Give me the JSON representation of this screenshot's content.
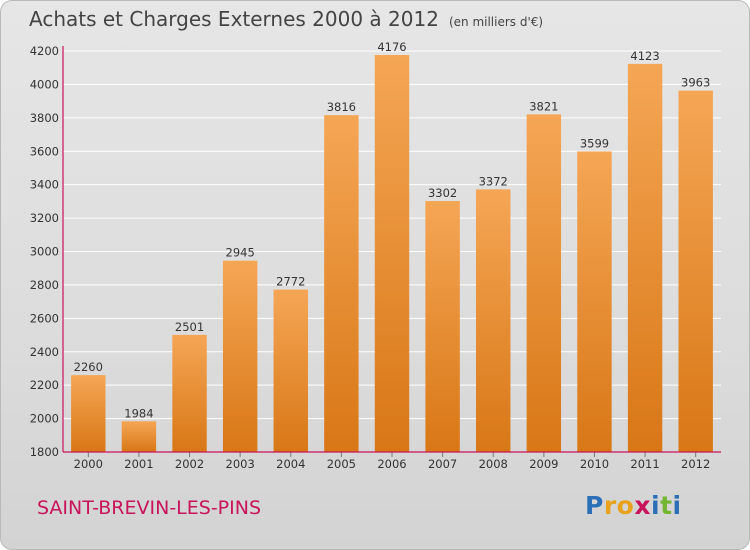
{
  "title": "Achats et Charges Externes 2000 à 2012",
  "unit": "(en milliers d'€)",
  "city": "SAINT-BREVIN-LES-PINS",
  "brand": {
    "letters": [
      "P",
      "r",
      "o",
      "x",
      "i",
      "t",
      "i"
    ],
    "colors": [
      "#2c6fb7",
      "#e8a21d",
      "#e8a21d",
      "#c8145a",
      "#2c6fb7",
      "#74b531",
      "#2c6fb7"
    ]
  },
  "colors": {
    "bar_light": "#f5a655",
    "bar_dark": "#d87716",
    "axis": "#c8145a",
    "grid": "#ffffff"
  },
  "chart_data": {
    "type": "bar",
    "title": "Achats et Charges Externes 2000 à 2012",
    "categories": [
      "2000",
      "2001",
      "2002",
      "2003",
      "2004",
      "2005",
      "2006",
      "2007",
      "2008",
      "2009",
      "2010",
      "2011",
      "2012"
    ],
    "values": [
      2260,
      1984,
      2501,
      2945,
      2772,
      3816,
      4176,
      3302,
      3372,
      3821,
      3599,
      4123,
      3963
    ],
    "ylim": [
      1800,
      4200
    ],
    "yticks": [
      1800,
      2000,
      2200,
      2400,
      2600,
      2800,
      3000,
      3200,
      3400,
      3600,
      3800,
      4000,
      4200
    ],
    "grid": true
  }
}
